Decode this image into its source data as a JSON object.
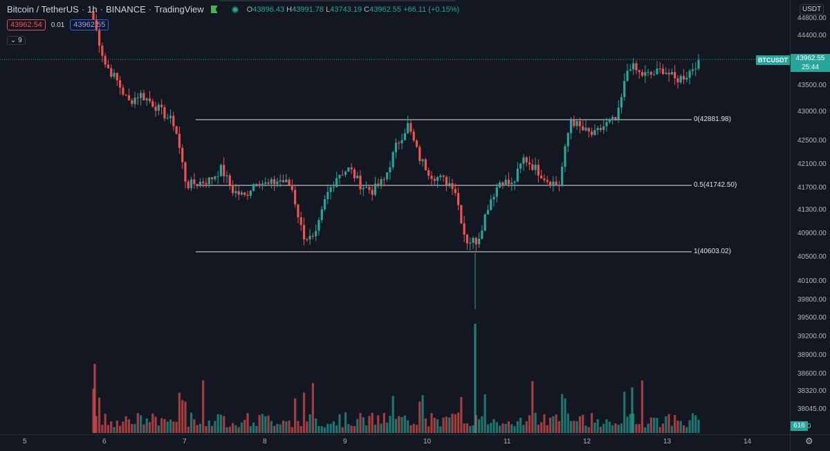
{
  "legend": {
    "symbol": "Bitcoin / TetherUS",
    "interval": "1h",
    "exchange": "BINANCE",
    "source": "TradingView",
    "open_label": "O",
    "open": "43896.43",
    "high_label": "H",
    "high": "43991.78",
    "low_label": "L",
    "low": "43743.19",
    "close_label": "C",
    "close": "43962.55",
    "change": "+66.11 (+0.15%)"
  },
  "trade": {
    "sell": "43962.54",
    "spread": "0.01",
    "buy": "43962.55"
  },
  "indicators_toggle": "9",
  "currency": "USDT",
  "price_axis": [
    "44400.00",
    "43500.00",
    "43000.00",
    "42500.00",
    "42100.00",
    "41700.00",
    "41300.00",
    "40900.00",
    "40500.00",
    "40100.00",
    "39800.00",
    "39500.00",
    "39200.00",
    "38900.00",
    "38600.00",
    "38320.00",
    "38045.00"
  ],
  "price_axis_top_partial": "44800.00",
  "price_axis_bottom_partial": "5.00",
  "time_axis": [
    "5",
    "6",
    "7",
    "8",
    "9",
    "10",
    "11",
    "12",
    "13",
    "14"
  ],
  "last_price": {
    "symbol": "BTCUSDT",
    "price": "43962.55",
    "countdown": "25:44"
  },
  "volume_last": "616",
  "fib": [
    {
      "label": "0(42881.98)",
      "price": 42881.98
    },
    {
      "label": "0.5(41742.50)",
      "price": 41742.5
    },
    {
      "label": "1(40603.02)",
      "price": 40603.02
    }
  ],
  "colors": {
    "up": "#26a69a",
    "down": "#ef5350",
    "background": "#131722"
  },
  "chart_data": {
    "type": "candlestick",
    "title": "Bitcoin / TetherUS",
    "ylim": [
      39400,
      44900
    ],
    "x_ticks": [
      "5",
      "6",
      "7",
      "8",
      "9",
      "10",
      "11",
      "12",
      "13",
      "14"
    ],
    "ohlc_anchor_closes": [
      44700,
      43900,
      43600,
      43200,
      43350,
      43200,
      43000,
      42800,
      41700,
      41750,
      41800,
      42000,
      41600,
      41500,
      41800,
      41700,
      41800,
      41700,
      40800,
      40700,
      41500,
      41900,
      42000,
      41700,
      41600,
      41800,
      42400,
      42800,
      42200,
      41900,
      41800,
      41700,
      40700,
      40700,
      41400,
      41800,
      41700,
      42200,
      42000,
      41800,
      41700,
      42900,
      42700,
      42600,
      42800,
      42900,
      43900,
      43700,
      43700,
      43800,
      43600,
      43700,
      43962.55
    ]
  }
}
